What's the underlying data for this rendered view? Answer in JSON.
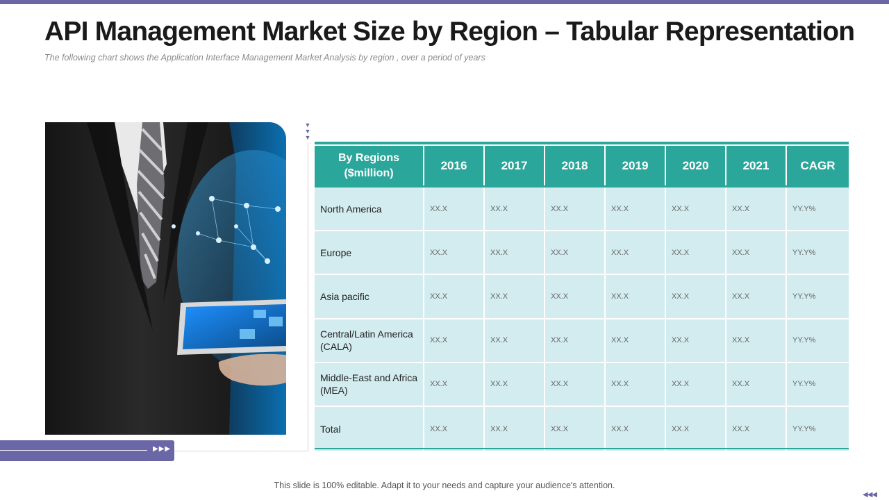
{
  "slide": {
    "title": "API Management Market Size by Region – Tabular Representation",
    "subtitle": "The following  chart shows the Application Interface Management  Market Analysis by region  , over a period  of years",
    "footer": "This slide is 100% editable. Adapt it to your needs and capture your audience's attention.",
    "accent_color": "#6b66a6",
    "table_color": "#2ba69a",
    "row_color": "#d3ecef"
  },
  "table": {
    "headers": [
      "By Regions ($million)",
      "2016",
      "2017",
      "2018",
      "2019",
      "2020",
      "2021",
      "CAGR"
    ],
    "rows": [
      {
        "region": "North America",
        "values": [
          "XX.X",
          "XX.X",
          "XX.X",
          "XX.X",
          "XX.X",
          "XX.X"
        ],
        "cagr": "YY.Y%"
      },
      {
        "region": "Europe",
        "values": [
          "XX.X",
          "XX.X",
          "XX.X",
          "XX.X",
          "XX.X",
          "XX.X"
        ],
        "cagr": "YY.Y%"
      },
      {
        "region": "Asia pacific",
        "values": [
          "XX.X",
          "XX.X",
          "XX.X",
          "XX.X",
          "XX.X",
          "XX.X"
        ],
        "cagr": "YY.Y%"
      },
      {
        "region": "Central/Latin America (CALA)",
        "values": [
          "XX.X",
          "XX.X",
          "XX.X",
          "XX.X",
          "XX.X",
          "XX.X"
        ],
        "cagr": "YY.Y%"
      },
      {
        "region": "Middle-East and Africa (MEA)",
        "values": [
          "XX.X",
          "XX.X",
          "XX.X",
          "XX.X",
          "XX.X",
          "XX.X"
        ],
        "cagr": "YY.Y%"
      },
      {
        "region": "Total",
        "values": [
          "XX.X",
          "XX.X",
          "XX.X",
          "XX.X",
          "XX.X",
          "XX.X"
        ],
        "cagr": "YY.Y%"
      }
    ]
  },
  "icons": {
    "down_arrows": "triple-down-arrow-icon",
    "right_arrows": "triple-right-arrow-icon",
    "left_arrows": "triple-left-arrow-icon"
  }
}
